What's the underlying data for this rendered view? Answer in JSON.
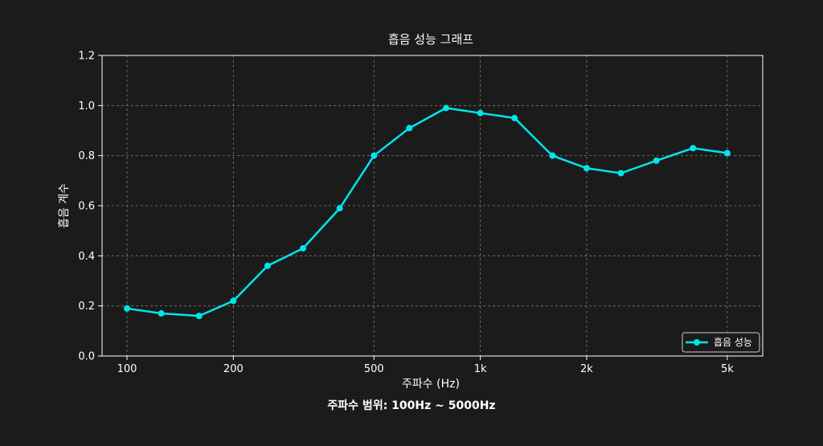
{
  "chart_data": {
    "type": "line",
    "title": "흡음 성능 그래프",
    "xlabel": "주파수 (Hz)",
    "ylabel": "흡음 계수",
    "xscale": "log",
    "xlim": [
      85,
      6300
    ],
    "ylim": [
      0,
      1.2
    ],
    "xticks": [
      100,
      200,
      500,
      1000,
      2000,
      5000
    ],
    "xtick_labels": [
      "100",
      "200",
      "500",
      "1k",
      "2k",
      "5k"
    ],
    "yticks": [
      0.0,
      0.2,
      0.4,
      0.6,
      0.8,
      1.0,
      1.2
    ],
    "ytick_labels": [
      "0.0",
      "0.2",
      "0.4",
      "0.6",
      "0.8",
      "1.0",
      "1.2"
    ],
    "grid": true,
    "legend_position": "bottom-right",
    "series": [
      {
        "name": "흡음 성능",
        "color": "#00e5ee",
        "marker": "circle",
        "x": [
          100,
          125,
          160,
          200,
          250,
          315,
          400,
          500,
          630,
          800,
          1000,
          1250,
          1600,
          2000,
          2500,
          3150,
          4000,
          5000
        ],
        "y": [
          0.19,
          0.17,
          0.16,
          0.22,
          0.36,
          0.43,
          0.59,
          0.8,
          0.91,
          0.99,
          0.97,
          0.95,
          0.8,
          0.75,
          0.73,
          0.78,
          0.83,
          0.81
        ]
      }
    ],
    "annotation": "주파수 범위: 100Hz ~ 5000Hz"
  },
  "colors": {
    "background": "#1b1b1b",
    "grid": "#7a7a7a",
    "axis": "#ffffff",
    "series": "#00e5ee"
  }
}
